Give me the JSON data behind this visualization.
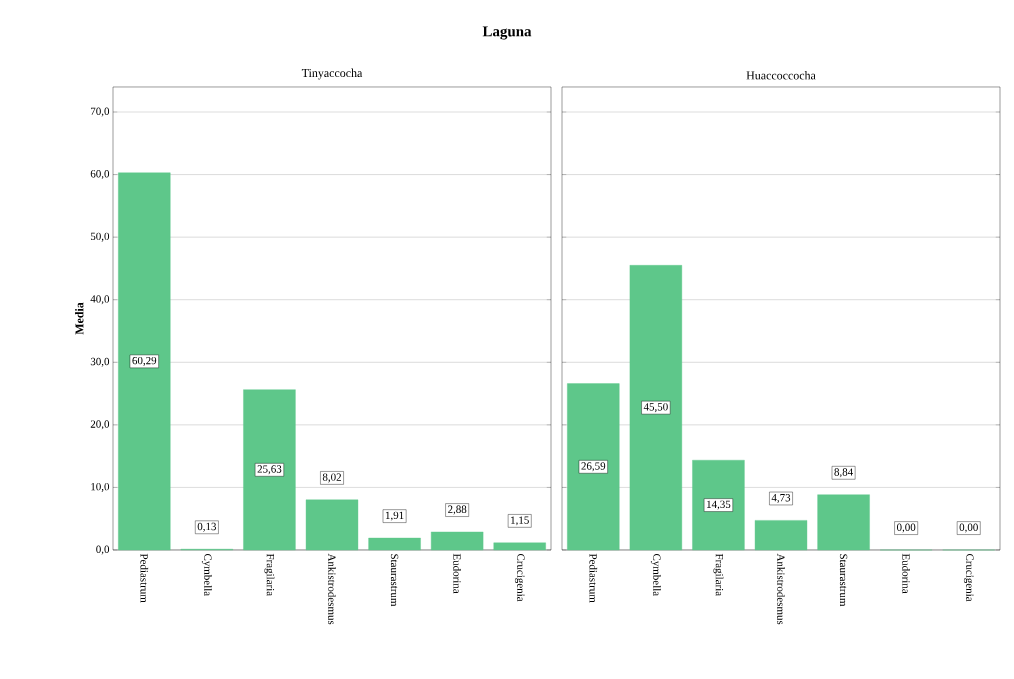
{
  "chart_data": [
    {
      "type": "bar",
      "title": "Laguna",
      "subtitle": "Tinyaccocha",
      "ylabel": "Media",
      "categories": [
        "Pediastrum",
        "Cymbella",
        "Fragilaria",
        "Ankistrodesmus",
        "Staurastrum",
        "Eudorina",
        "Crucigenia"
      ],
      "values": [
        60.29,
        0.13,
        25.63,
        8.02,
        1.91,
        2.88,
        1.15
      ],
      "value_labels": [
        "60,29",
        "0,13",
        "25,63",
        "8,02",
        "1,91",
        "2,88",
        "1,15"
      ],
      "color": "#5ec78a",
      "ylim": [
        0,
        74
      ],
      "yticks": [
        {
          "value": 0,
          "label": "0,0"
        },
        {
          "value": 10,
          "label": "10,0"
        },
        {
          "value": 20,
          "label": "20,0"
        },
        {
          "value": 30,
          "label": "30,0"
        },
        {
          "value": 40,
          "label": "40,0"
        },
        {
          "value": 50,
          "label": "50,0"
        },
        {
          "value": 60,
          "label": "60,0"
        },
        {
          "value": 70,
          "label": "70,0"
        }
      ],
      "grid": "y"
    },
    {
      "type": "bar",
      "subtitle": "Huaccoccocha",
      "categories": [
        "Pediastrum",
        "Cymbella",
        "Fragilaria",
        "Ankistrodesmus",
        "Staurastrum",
        "Eudorina",
        "Crucigenia"
      ],
      "values": [
        26.59,
        45.5,
        14.35,
        4.73,
        8.84,
        0.0,
        0.0
      ],
      "value_labels": [
        "26,59",
        "45,50",
        "14,35",
        "4,73",
        "8,84",
        "0,00",
        "0,00"
      ],
      "color": "#5ec78a",
      "ylim": [
        0,
        74
      ],
      "yticks": [
        {
          "value": 0,
          "label": null
        },
        {
          "value": 10,
          "label": null
        },
        {
          "value": 20,
          "label": null
        },
        {
          "value": 30,
          "label": null
        },
        {
          "value": 40,
          "label": null
        },
        {
          "value": 50,
          "label": null
        },
        {
          "value": 60,
          "label": null
        },
        {
          "value": 70,
          "label": null
        }
      ],
      "grid": "y",
      "tick_labels": "x"
    }
  ]
}
